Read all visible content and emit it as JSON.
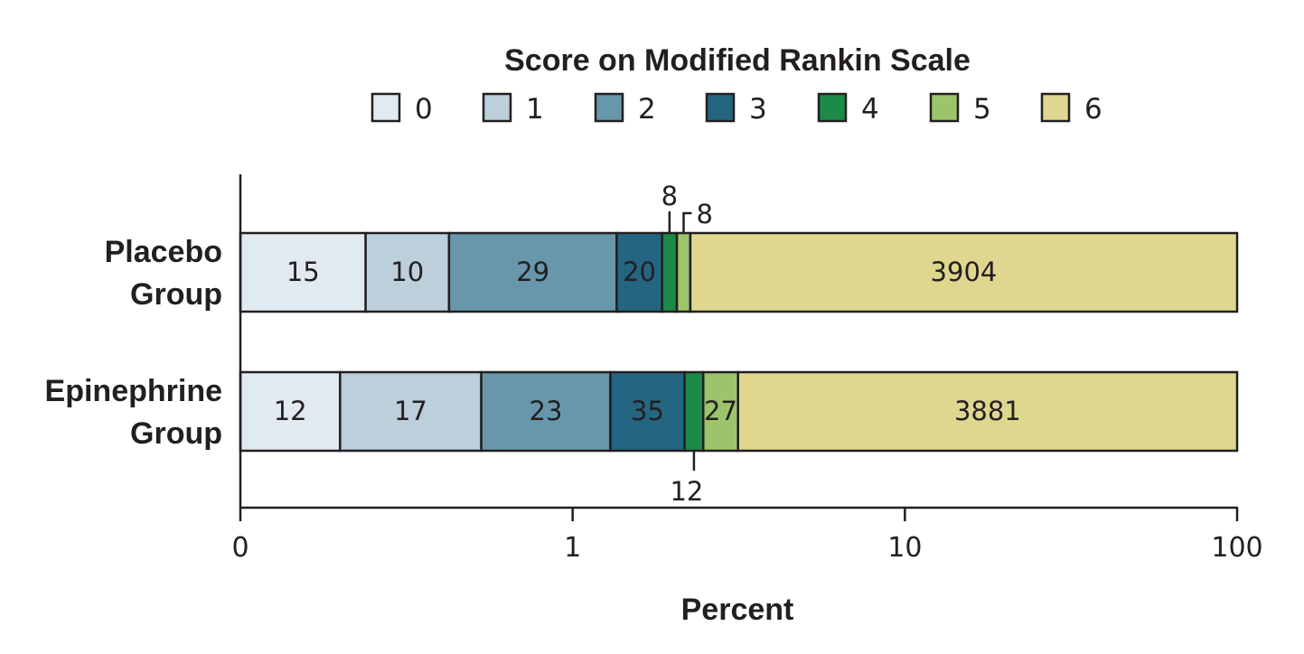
{
  "chart_data": {
    "type": "bar",
    "orientation": "horizontal",
    "stacked": true,
    "title": "Score on Modified Rankin Scale",
    "xlabel": "Percent",
    "x_scale": "log",
    "xlim": [
      0,
      100
    ],
    "x_ticks": [
      "0",
      "1",
      "10",
      "100"
    ],
    "legend_position": "top",
    "categories": [
      "0",
      "1",
      "2",
      "3",
      "4",
      "5",
      "6"
    ],
    "colors": [
      "#e2eaf1",
      "#bccfda",
      "#6897ac",
      "#246682",
      "#1c8a48",
      "#9cc46a",
      "#dfd78f"
    ],
    "groups": [
      {
        "name": "Placebo Group",
        "label_lines": [
          "Placebo",
          "Group"
        ],
        "counts": [
          "15",
          "10",
          "29",
          "20",
          "8",
          "8",
          "3904"
        ],
        "percent_boundaries": [
          0,
          0.377,
          0.628,
          1.357,
          1.859,
          2.06,
          2.261,
          100
        ]
      },
      {
        "name": "Epinephrine Group",
        "label_lines": [
          "Epinephrine",
          "Group"
        ],
        "counts": [
          "12",
          "17",
          "23",
          "35",
          "12",
          "27",
          "3881"
        ],
        "percent_boundaries": [
          0,
          0.3,
          0.725,
          1.299,
          2.173,
          2.473,
          3.147,
          100
        ]
      }
    ]
  }
}
